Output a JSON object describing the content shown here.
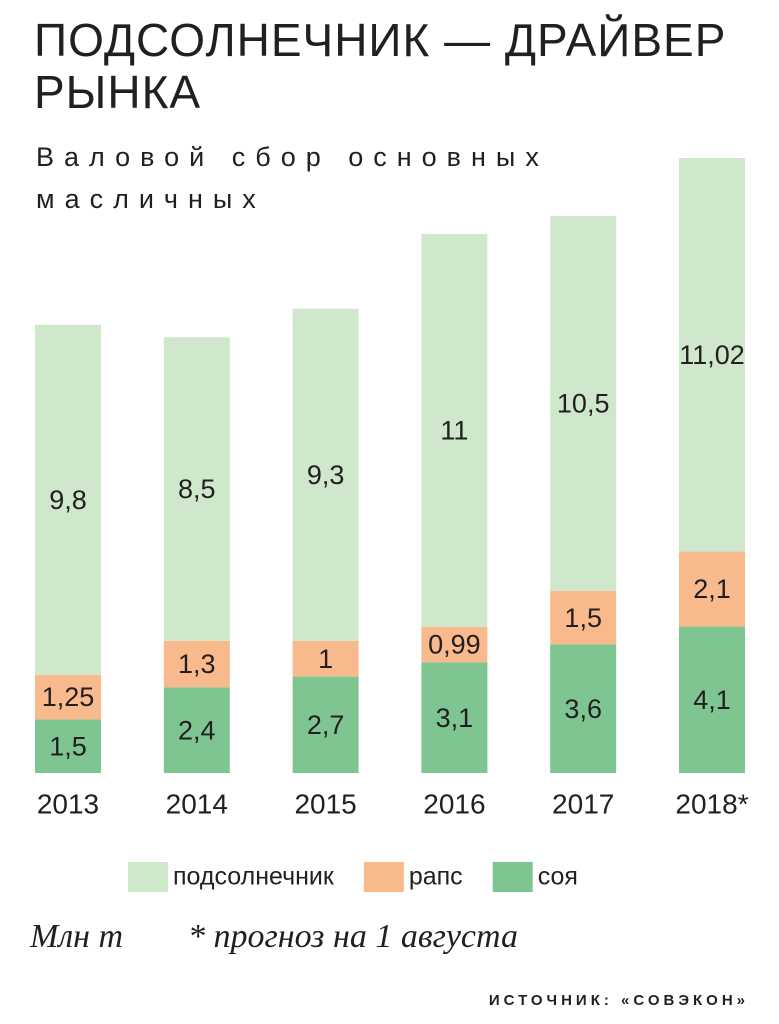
{
  "chart_data": {
    "type": "stacked_bar",
    "title": "ПОДСОЛНЕЧНИК — ДРАЙВЕР РЫНКА",
    "subtitle": "Валовой сбор основных масличных",
    "categories": [
      "2013",
      "2014",
      "2015",
      "2016",
      "2017",
      "2018*"
    ],
    "series": [
      {
        "name": "подсолнечник",
        "color": "#cfe8cc",
        "values": [
          9.8,
          8.5,
          9.3,
          11,
          10.5,
          11.02
        ],
        "value_labels": [
          "9,8",
          "8,5",
          "9,3",
          "11",
          "10,5",
          "11,02"
        ]
      },
      {
        "name": "рапс",
        "color": "#f8ba8c",
        "values": [
          1.25,
          1.3,
          1,
          0.99,
          1.5,
          2.1
        ],
        "value_labels": [
          "1,25",
          "1,3",
          "1",
          "0,99",
          "1,5",
          "2,1"
        ]
      },
      {
        "name": "соя",
        "color": "#7ec591",
        "values": [
          1.5,
          2.4,
          2.7,
          3.1,
          3.6,
          4.1
        ],
        "value_labels": [
          "1,5",
          "2,4",
          "2,7",
          "3,1",
          "3,6",
          "4,1"
        ]
      }
    ],
    "unit_note": "Млн т",
    "footnote": "* прогноз на 1 августа",
    "source": "ИСТОЧНИК: «СОВЭКОН»"
  }
}
